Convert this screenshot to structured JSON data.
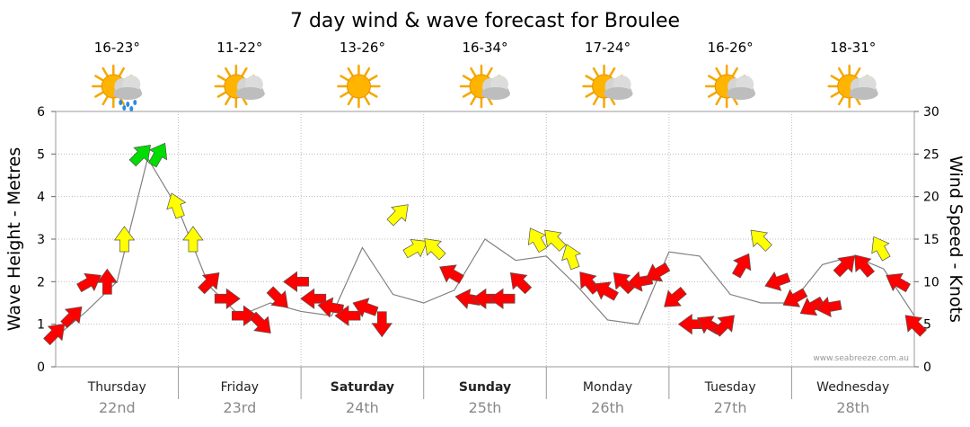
{
  "chart_data": {
    "type": "line",
    "title": "7 day wind & wave forecast for Broulee",
    "ylabel_left": "Wave Height - Metres",
    "ylabel_right": "Wind Speed - Knots",
    "ylim_left": [
      0,
      6
    ],
    "ylim_right": [
      0,
      30
    ],
    "yticks_left": [
      "0",
      "1",
      "2",
      "3",
      "4",
      "5",
      "6"
    ],
    "yticks_right": [
      "0",
      "5",
      "10",
      "15",
      "20",
      "25",
      "30"
    ],
    "grid": true,
    "credit": "www.seabreeze.com.au",
    "days": [
      {
        "name": "Thursday",
        "date": "22nd",
        "temp": "16-23°",
        "icon": "sun-cloud-rain-icon",
        "bold": false
      },
      {
        "name": "Friday",
        "date": "23rd",
        "temp": "11-22°",
        "icon": "sun-cloud-icon",
        "bold": false
      },
      {
        "name": "Saturday",
        "date": "24th",
        "temp": "13-26°",
        "icon": "sun-icon",
        "bold": true
      },
      {
        "name": "Sunday",
        "date": "25th",
        "temp": "16-34°",
        "icon": "sun-cloud-icon",
        "bold": true
      },
      {
        "name": "Monday",
        "date": "26th",
        "temp": "17-24°",
        "icon": "sun-cloud-icon",
        "bold": false
      },
      {
        "name": "Tuesday",
        "date": "27th",
        "temp": "16-26°",
        "icon": "sun-cloud-icon",
        "bold": false
      },
      {
        "name": "Wednesday",
        "date": "28th",
        "temp": "18-31°",
        "icon": "sun-cloud-icon",
        "bold": false
      }
    ],
    "series": [
      {
        "name": "Wave Height",
        "axis": "left",
        "color": "#808080",
        "x": [
          0,
          0.25,
          0.5,
          0.75,
          1,
          1.25,
          1.5,
          1.75,
          2,
          2.25,
          2.5,
          2.75,
          3,
          3.25,
          3.5,
          3.75,
          4,
          4.25,
          4.5,
          4.75,
          5,
          5.25,
          5.5,
          5.75,
          6,
          6.25,
          6.5,
          6.75,
          7
        ],
        "values": [
          0.7,
          1.3,
          2.0,
          4.9,
          3.7,
          1.9,
          1.2,
          1.5,
          1.3,
          1.2,
          2.8,
          1.7,
          1.5,
          1.8,
          3.0,
          2.5,
          2.6,
          1.9,
          1.1,
          1.0,
          2.7,
          2.6,
          1.7,
          1.5,
          1.5,
          2.4,
          2.6,
          2.3,
          1.2
        ]
      },
      {
        "name": "Wind Speed",
        "axis": "right",
        "x": [
          0,
          0.14,
          0.28,
          0.42,
          0.56,
          0.7,
          0.84,
          0.98,
          1.12,
          1.26,
          1.4,
          1.54,
          1.68,
          1.82,
          1.96,
          2.1,
          2.24,
          2.38,
          2.52,
          2.66,
          2.8,
          2.94,
          3.08,
          3.22,
          3.36,
          3.5,
          3.64,
          3.78,
          3.92,
          4.06,
          4.2,
          4.34,
          4.48,
          4.62,
          4.76,
          4.9,
          5.04,
          5.18,
          5.32,
          5.46,
          5.6,
          5.74,
          5.88,
          6.02,
          6.16,
          6.3,
          6.44,
          6.58,
          6.72,
          6.86,
          7
        ],
        "values": [
          4,
          6,
          10,
          10,
          15,
          25,
          25,
          19,
          15,
          10,
          8,
          6,
          5,
          8,
          10,
          8,
          7,
          6,
          7,
          5,
          18,
          14,
          14,
          11,
          8,
          8,
          8,
          10,
          15,
          15,
          13,
          10,
          9,
          10,
          10,
          11,
          8,
          5,
          5,
          5,
          12,
          15,
          10,
          8,
          7,
          7,
          12,
          12,
          14,
          10,
          5
        ],
        "direction_deg": [
          45,
          45,
          60,
          0,
          0,
          45,
          30,
          -20,
          0,
          45,
          90,
          90,
          135,
          135,
          -90,
          -90,
          -80,
          -90,
          -70,
          180,
          45,
          60,
          -45,
          -60,
          -80,
          -90,
          -90,
          -45,
          -30,
          -45,
          -20,
          -40,
          -60,
          -45,
          -100,
          -120,
          -130,
          -90,
          -60,
          45,
          30,
          -45,
          -110,
          -120,
          -120,
          -100,
          45,
          -40,
          -30,
          -60,
          -45
        ]
      }
    ],
    "wind_colors": {
      "light": "#ff0000",
      "moderate": "#ffff00",
      "strong": "#00dd00"
    }
  }
}
